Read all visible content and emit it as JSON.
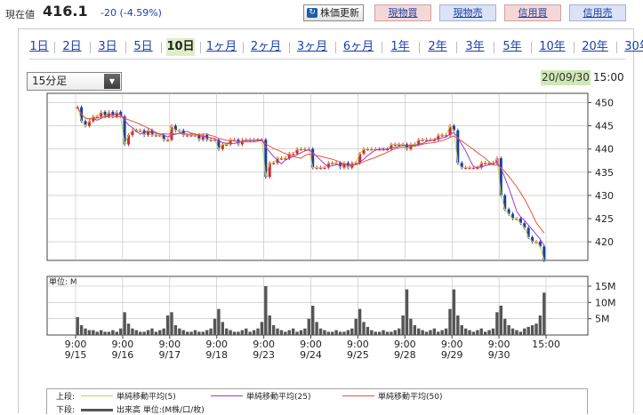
{
  "quote": {
    "price_label": "現在値",
    "price": "416.1",
    "change": "-20 (-4.59%)",
    "refresh_label": "株価更新",
    "trade_buttons": [
      "現物買",
      "現物売",
      "信用買",
      "信用売"
    ]
  },
  "periods": [
    "1日",
    "2日",
    "3日",
    "5日",
    "10日",
    "1ヶ月",
    "2ヶ月",
    "3ヶ月",
    "6ヶ月",
    "1年",
    "2年",
    "3年",
    "5年",
    "10年",
    "20年",
    "30年"
  ],
  "active_period": "10日",
  "interval_select": {
    "value": "15分足"
  },
  "chart_header": {
    "date": "20/09/30",
    "time": "15:00"
  },
  "chart_data": {
    "type": "line",
    "price_axis": {
      "ticks": [
        450,
        445,
        440,
        435,
        430,
        425,
        420
      ],
      "ylim": [
        416,
        452
      ]
    },
    "volume_axis": {
      "unit_label": "単位: M",
      "ticks": [
        "15M",
        "10M",
        "5M"
      ],
      "tick_values": [
        15,
        10,
        5
      ],
      "ylim": [
        0,
        18
      ]
    },
    "x_ticks": [
      {
        "time": "9:00",
        "date": "9/15"
      },
      {
        "time": "9:00",
        "date": "9/16"
      },
      {
        "time": "9:00",
        "date": "9/17"
      },
      {
        "time": "9:00",
        "date": "9/18"
      },
      {
        "time": "9:00",
        "date": "9/23"
      },
      {
        "time": "9:00",
        "date": "9/24"
      },
      {
        "time": "9:00",
        "date": "9/25"
      },
      {
        "time": "9:00",
        "date": "9/28"
      },
      {
        "time": "9:00",
        "date": "9/29"
      },
      {
        "time": "9:00",
        "date": "9/30"
      },
      {
        "time": "15:00",
        "date": ""
      }
    ],
    "days": [
      {
        "date": "9/15",
        "price": [
          449,
          446,
          445,
          446,
          447,
          447,
          448,
          447,
          448,
          447,
          448,
          447
        ],
        "volume": [
          5.5,
          3,
          2,
          1.5,
          1.5,
          1,
          1.5,
          1,
          1,
          1.5,
          1,
          2
        ]
      },
      {
        "date": "9/16",
        "price": [
          441,
          443,
          444,
          444,
          444,
          443,
          444,
          443,
          443,
          443,
          442,
          442
        ],
        "volume": [
          7,
          3.5,
          2,
          1.5,
          1,
          1,
          1.5,
          2,
          1,
          1.5,
          2,
          6
        ]
      },
      {
        "date": "9/17",
        "price": [
          445,
          444,
          444,
          443,
          443,
          443,
          443,
          442,
          443,
          442,
          442,
          442
        ],
        "volume": [
          7,
          3,
          2,
          1.5,
          1,
          1,
          1.5,
          1,
          1,
          1.5,
          2,
          5
        ]
      },
      {
        "date": "9/18",
        "price": [
          440,
          441,
          441,
          442,
          442,
          441,
          442,
          442,
          442,
          442,
          442,
          442
        ],
        "volume": [
          8,
          4,
          2,
          1.5,
          1,
          1,
          1.5,
          2,
          1,
          1.5,
          2,
          4
        ]
      },
      {
        "date": "9/23",
        "price": [
          434,
          437,
          437,
          438,
          438,
          438,
          439,
          439,
          440,
          440,
          440,
          440
        ],
        "volume": [
          15,
          6,
          3,
          2,
          1.5,
          1,
          1.5,
          2,
          1,
          1.5,
          2,
          5
        ]
      },
      {
        "date": "9/24",
        "price": [
          436,
          436,
          436,
          436,
          437,
          437,
          437,
          436,
          437,
          436,
          437,
          437
        ],
        "volume": [
          9,
          4,
          2,
          1.5,
          1,
          1,
          1.5,
          1,
          1,
          1.5,
          2,
          5
        ]
      },
      {
        "date": "9/25",
        "price": [
          439,
          440,
          440,
          440,
          440,
          440,
          440,
          440,
          441,
          441,
          441,
          441
        ],
        "volume": [
          8,
          4,
          2.5,
          1.5,
          1,
          1,
          1.5,
          1,
          1,
          1.5,
          2,
          6
        ]
      },
      {
        "date": "9/28",
        "price": [
          440,
          441,
          441,
          442,
          442,
          442,
          442,
          442,
          443,
          443,
          443,
          445
        ],
        "volume": [
          14,
          5,
          3,
          2,
          1.5,
          1,
          1.5,
          2,
          1,
          1.5,
          2,
          8
        ]
      },
      {
        "date": "9/29",
        "price": [
          444,
          437,
          436,
          436,
          436,
          436,
          436,
          437,
          437,
          437,
          437,
          438
        ],
        "volume": [
          14,
          6,
          3,
          2,
          1.5,
          1,
          1.5,
          2,
          1,
          1.5,
          2,
          7
        ]
      },
      {
        "date": "9/30",
        "price": [
          430,
          427,
          426,
          425,
          425,
          424,
          423,
          421,
          420,
          420,
          419,
          416
        ],
        "volume": [
          9,
          5,
          3,
          2,
          1.5,
          1,
          2,
          2.5,
          3,
          3.5,
          6,
          13
        ]
      }
    ],
    "moving_averages": [
      {
        "name": "単純移動平均(5)",
        "color": "#c6d35a",
        "window": 5
      },
      {
        "name": "単純移動平均(25)",
        "color": "#9b3bd6",
        "window": 25
      },
      {
        "name": "単純移動平均(50)",
        "color": "#e5553b",
        "window": 50
      }
    ],
    "volume_series": {
      "name": "出来高 単位:(M株/口/枚)",
      "color": "#555555"
    },
    "legend": {
      "upper_label": "上段:",
      "lower_label": "下段:"
    }
  }
}
